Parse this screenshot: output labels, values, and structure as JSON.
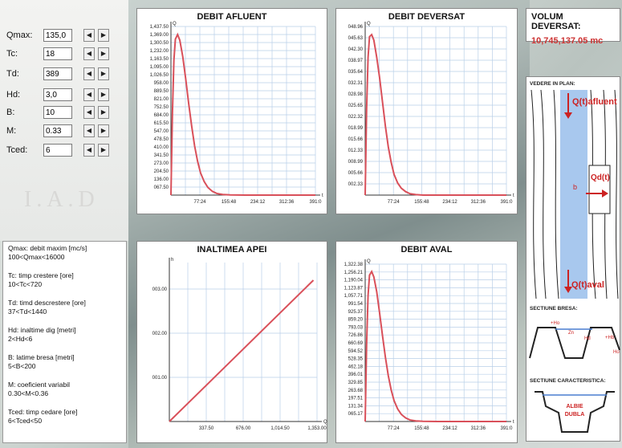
{
  "params": [
    {
      "label": "Qmax:",
      "value": "135,0"
    },
    {
      "label": "Tc:",
      "value": "18"
    },
    {
      "label": "Td:",
      "value": "389"
    },
    {
      "label": "Hd:",
      "value": "3,0"
    },
    {
      "label": "B:",
      "value": "10"
    },
    {
      "label": "M:",
      "value": "0.33"
    },
    {
      "label": "Tced:",
      "value": "6"
    }
  ],
  "stepper": {
    "left": "◀",
    "right": "▶"
  },
  "logo": "I.A.D",
  "help": [
    [
      "Qmax: debit maxim [mc/s]",
      "100<Qmax<16000"
    ],
    [
      "Tc: timp crestere [ore]",
      "10<Tc<720"
    ],
    [
      "Td: timd descrestere [ore]",
      "37<Td<1440"
    ],
    [
      "Hd: inaltime dig [metri]",
      "2<Hd<6"
    ],
    [
      "B: latime bresa [metri]",
      "5<B<200"
    ],
    [
      "M: coeficient variabil",
      "0.30<M<0.36"
    ],
    [
      "Tced: timp cedare [ore]",
      "6<Tced<50"
    ]
  ],
  "volume": {
    "label": "VOLUM DEVERSAT:",
    "value": "10,745,137.05 mc"
  },
  "diagram": {
    "plan_title": "VEDERE IN PLAN:",
    "q_afluent": "Q(t)afluent",
    "q_dev": "Qd(t)",
    "q_aval": "Q(t)aval",
    "b": "b",
    "sect_bresa": "SECTIUNE BRESA:",
    "h0": "+Ho",
    "hd": "Hd",
    "hb": "+Hb",
    "zn": "Zn",
    "ho2": "Ho",
    "sect_car": "SECTIUNE CARACTERISTICA:",
    "albie": "ALBIE",
    "dubla": "DUBLA"
  },
  "colors": {
    "curve": "#d9505a",
    "grid": "#b9cfe8",
    "axis": "#333333",
    "volume": "#cc3333"
  },
  "chart_data": [
    {
      "type": "line",
      "title": "DEBIT AFLUENT",
      "ylabel": "Q",
      "xlabel": "t",
      "ylim": [
        0,
        1437.5
      ],
      "xlim": [
        0,
        391
      ],
      "yticks": [
        "1,437.50",
        "1,369.00",
        "1,300.50",
        "1,232.00",
        "1,163.50",
        "1,095.00",
        "1,026.50",
        "958.00",
        "889.50",
        "821.00",
        "752.50",
        "684.00",
        "615.50",
        "547.00",
        "478.50",
        "410.00",
        "341.50",
        "273.00",
        "204.50",
        "136.00",
        "067.50"
      ],
      "xticks": [
        "77:24",
        "155:48",
        "234:12",
        "312:36",
        "391:0"
      ],
      "x": [
        0,
        4,
        8,
        12,
        18,
        24,
        32,
        40,
        48,
        56,
        64,
        72,
        80,
        90,
        100,
        112,
        124,
        140,
        160,
        200,
        260,
        330,
        391
      ],
      "y": [
        0,
        700,
        1150,
        1330,
        1369,
        1320,
        1180,
        990,
        780,
        590,
        420,
        290,
        190,
        115,
        65,
        32,
        14,
        5,
        2,
        0,
        0,
        0,
        0
      ]
    },
    {
      "type": "line",
      "title": "DEBIT DEVERSAT",
      "ylabel": "Q",
      "xlabel": "t",
      "ylim": [
        0,
        48.96
      ],
      "xlim": [
        0,
        391
      ],
      "yticks": [
        "048.96",
        "045.63",
        "042.30",
        "038.97",
        "035.64",
        "032.31",
        "028.98",
        "025.65",
        "022.32",
        "018.99",
        "015.66",
        "012.33",
        "008.99",
        "005.66",
        "002.33"
      ],
      "xticks": [
        "77:24",
        "155:48",
        "234:12",
        "312:36",
        "391:0"
      ],
      "x": [
        0,
        4,
        8,
        12,
        18,
        24,
        32,
        40,
        48,
        56,
        64,
        72,
        80,
        90,
        100,
        112,
        124,
        140,
        160,
        200,
        260,
        330,
        391
      ],
      "y": [
        0,
        25,
        40,
        46,
        46.6,
        45,
        40,
        34,
        27,
        20,
        14,
        9.5,
        6,
        3.5,
        2,
        1,
        0.4,
        0.15,
        0,
        0,
        0,
        0,
        0
      ]
    },
    {
      "type": "line",
      "title": "INALTIMEA APEI",
      "ylabel": "h",
      "xlabel": "Q",
      "ylim": [
        0,
        3.6
      ],
      "xlim": [
        0,
        1353
      ],
      "yticks": [
        "003.00",
        "002.00",
        "001.00"
      ],
      "ytickvals": [
        3,
        2,
        1
      ],
      "xticks": [
        "337.50",
        "676.00",
        "1,014.50",
        "1,353.00"
      ],
      "x": [
        0,
        1320
      ],
      "y": [
        0,
        3.2
      ]
    },
    {
      "type": "line",
      "title": "DEBIT AVAL",
      "ylabel": "Q",
      "xlabel": "t",
      "ylim": [
        0,
        1322.38
      ],
      "xlim": [
        0,
        391
      ],
      "yticks": [
        "1,322.38",
        "1,256.21",
        "1,190.04",
        "1,123.87",
        "1,057.71",
        "991.54",
        "925.37",
        "859.20",
        "793.03",
        "726.86",
        "660.69",
        "594.52",
        "528.35",
        "462.18",
        "396.01",
        "329.85",
        "263.68",
        "197.51",
        "131.34",
        "065.17"
      ],
      "xticks": [
        "77:24",
        "155:48",
        "234:12",
        "312:36",
        "391:0"
      ],
      "x": [
        0,
        4,
        8,
        12,
        18,
        24,
        32,
        40,
        48,
        56,
        64,
        72,
        80,
        90,
        100,
        112,
        124,
        140,
        160,
        200,
        260,
        330,
        391
      ],
      "y": [
        0,
        650,
        1060,
        1230,
        1260,
        1215,
        1090,
        910,
        720,
        540,
        385,
        265,
        175,
        105,
        60,
        30,
        13,
        5,
        2,
        0,
        0,
        0,
        0
      ]
    }
  ]
}
